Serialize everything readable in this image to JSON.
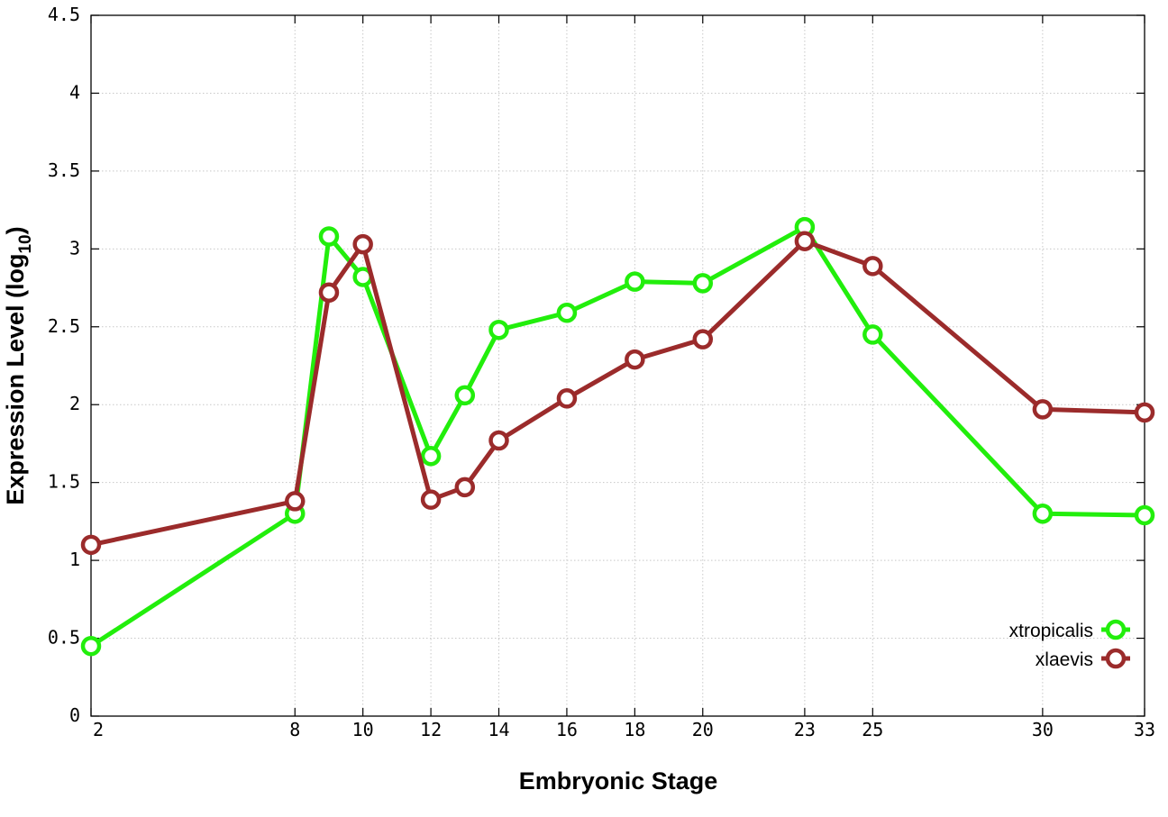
{
  "chart_data": {
    "type": "line",
    "xlabel": "Embryonic Stage",
    "ylabel": {
      "main": "Expression Level (log",
      "subscript": "10",
      "close": ")"
    },
    "x_ticks": [
      2,
      8,
      10,
      12,
      14,
      16,
      18,
      20,
      23,
      25,
      30,
      33
    ],
    "y_ticks": [
      "0",
      "0.5",
      "1",
      "1.5",
      "2",
      "2.5",
      "3",
      "3.5",
      "4",
      "4.5"
    ],
    "xlim": [
      2,
      33
    ],
    "ylim": [
      0,
      4.5
    ],
    "grid": true,
    "legend_position": "bottom-right",
    "series": [
      {
        "name": "xtropicalis",
        "color": "#22ee0c",
        "x": [
          2,
          8,
          9,
          10,
          12,
          13,
          14,
          16,
          18,
          20,
          23,
          25,
          30,
          33
        ],
        "y": [
          0.45,
          1.3,
          3.08,
          2.82,
          1.67,
          2.06,
          2.48,
          2.59,
          2.79,
          2.78,
          3.14,
          2.45,
          1.3,
          1.29
        ]
      },
      {
        "name": "xlaevis",
        "color": "#9b2b2b",
        "x": [
          2,
          8,
          9,
          10,
          12,
          13,
          14,
          16,
          18,
          20,
          23,
          25,
          30,
          33
        ],
        "y": [
          1.1,
          1.38,
          2.72,
          3.03,
          1.39,
          1.47,
          1.77,
          2.04,
          2.29,
          2.42,
          3.05,
          2.89,
          1.97,
          1.95
        ]
      }
    ]
  }
}
